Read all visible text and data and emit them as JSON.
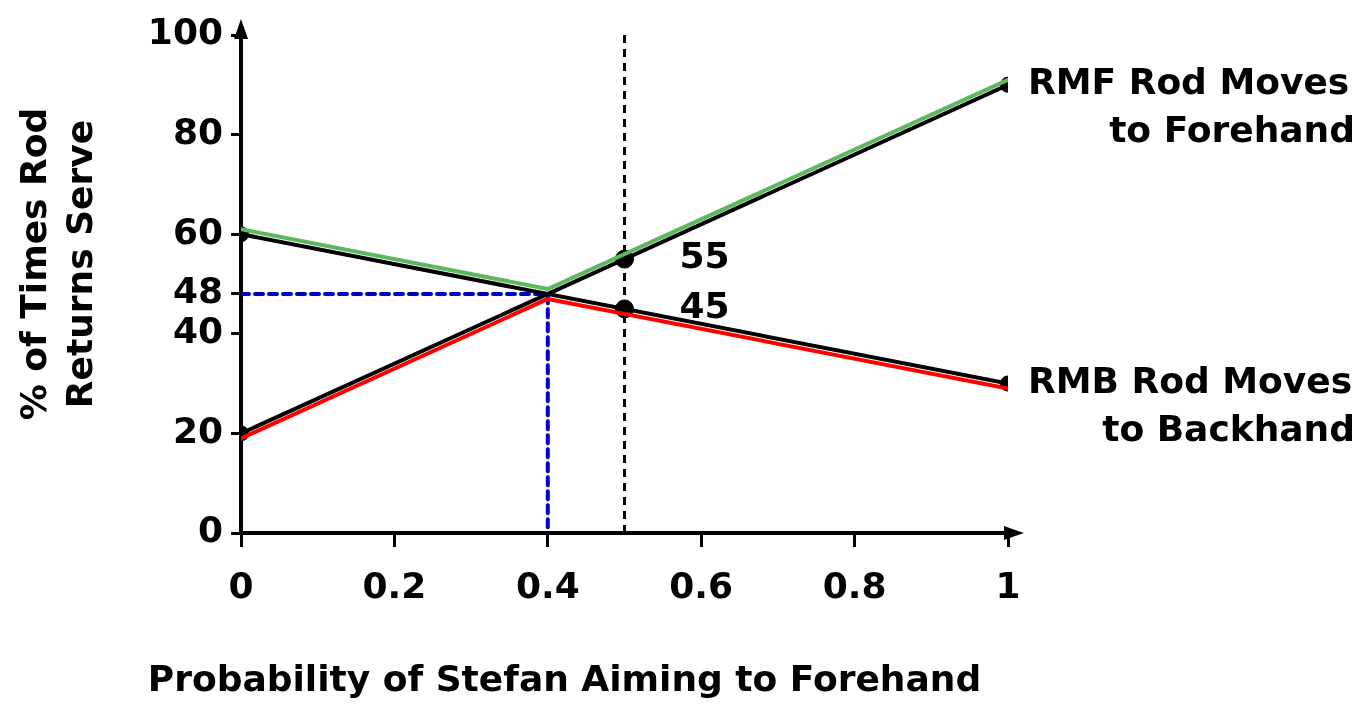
{
  "chart_data": {
    "type": "line",
    "xlabel": "Probability of Stefan Aiming to Forehand",
    "ylabel": "% of Times Rod Returns Serve",
    "xlim": [
      0,
      1
    ],
    "ylim": [
      0,
      100
    ],
    "xticks": [
      0,
      0.2,
      0.4,
      0.6,
      0.8,
      1
    ],
    "yticks": [
      0,
      20,
      40,
      48,
      60,
      80,
      100
    ],
    "grid": false,
    "legend": false,
    "marker": "circle",
    "series": [
      {
        "color": "#5cb85c",
        "x": [
          0,
          0.4,
          1
        ],
        "values": [
          61,
          49,
          91
        ],
        "marker": "none"
      },
      {
        "color": "#ff0000",
        "x": [
          0,
          0.4,
          1
        ],
        "values": [
          19,
          47,
          29
        ],
        "marker": "none"
      },
      {
        "name": "RMF Rod Moves to Forehand",
        "color": "#000000",
        "x": [
          0,
          1
        ],
        "values": [
          20,
          90
        ]
      },
      {
        "name": "RMB Rod Moves to Backhand",
        "color": "#000000",
        "x": [
          0,
          1
        ],
        "values": [
          60,
          30
        ]
      },
      {
        "color": "#0000cc",
        "x": [
          0,
          0.4,
          0.4
        ],
        "values": [
          48,
          48,
          0
        ],
        "line_style": "dashed",
        "marker": "none"
      },
      {
        "type": "scatter",
        "color": "#000000",
        "x": [
          0.5,
          0.5
        ],
        "values": [
          55,
          45
        ]
      }
    ],
    "ref_lines": [
      {
        "axis": "x",
        "value": 0.5,
        "color": "#000000",
        "line_style": "dashed"
      }
    ],
    "annotations": [
      {
        "text": "55",
        "x": 0.5,
        "y": 55
      },
      {
        "text": "45",
        "x": 0.5,
        "y": 45
      }
    ]
  }
}
